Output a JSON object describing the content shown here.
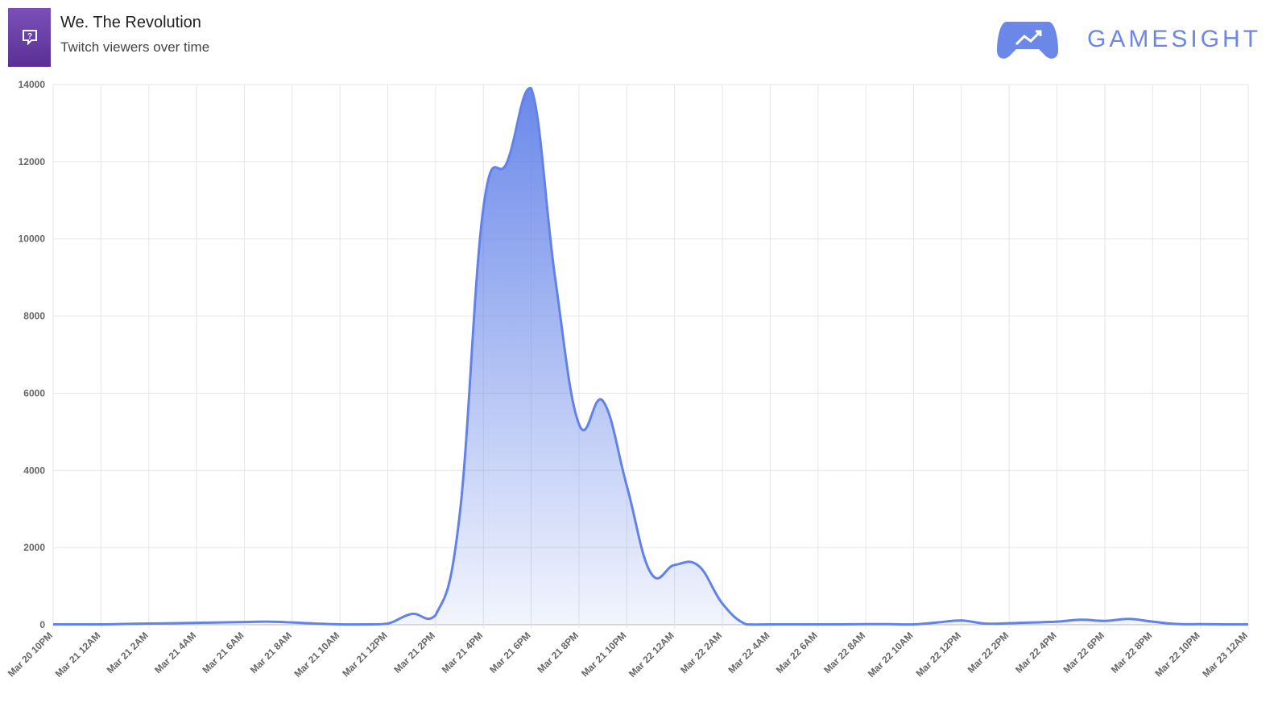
{
  "header": {
    "title": "We. The Revolution",
    "subtitle": "Twitch viewers over time",
    "brand": "GAMESIGHT"
  },
  "chart_data": {
    "type": "area",
    "categories": [
      "Mar 20 10PM",
      null,
      "Mar 21 12AM",
      null,
      "Mar 21 2AM",
      null,
      "Mar 21 4AM",
      null,
      "Mar 21 6AM",
      null,
      "Mar 21 8AM",
      null,
      "Mar 21 10AM",
      null,
      "Mar 21 12PM",
      null,
      "Mar 21 2PM",
      null,
      "Mar 21 4PM",
      null,
      "Mar 21 6PM",
      null,
      "Mar 21 8PM",
      null,
      "Mar 21 10PM",
      null,
      "Mar 22 12AM",
      null,
      "Mar 22 2AM",
      null,
      "Mar 22 4AM",
      null,
      "Mar 22 6AM",
      null,
      "Mar 22 8AM",
      null,
      "Mar 22 10AM",
      null,
      "Mar 22 12PM",
      null,
      "Mar 22 2PM",
      null,
      "Mar 22 4PM",
      null,
      "Mar 22 6PM",
      null,
      "Mar 22 8PM",
      null,
      "Mar 22 10PM",
      null,
      "Mar 23 12AM"
    ],
    "values": [
      10,
      10,
      10,
      20,
      30,
      40,
      50,
      60,
      70,
      80,
      60,
      30,
      10,
      10,
      30,
      280,
      250,
      2800,
      10800,
      12000,
      13900,
      9000,
      5200,
      5800,
      3600,
      1350,
      1550,
      1530,
      550,
      10,
      10,
      10,
      10,
      10,
      15,
      15,
      10,
      60,
      110,
      30,
      40,
      60,
      80,
      130,
      100,
      150,
      80,
      20,
      15,
      10,
      10
    ],
    "color": "#6282e8",
    "ylim": [
      0,
      14000
    ],
    "yticks": [
      0,
      2000,
      4000,
      6000,
      8000,
      10000,
      12000,
      14000
    ],
    "grid": true
  }
}
